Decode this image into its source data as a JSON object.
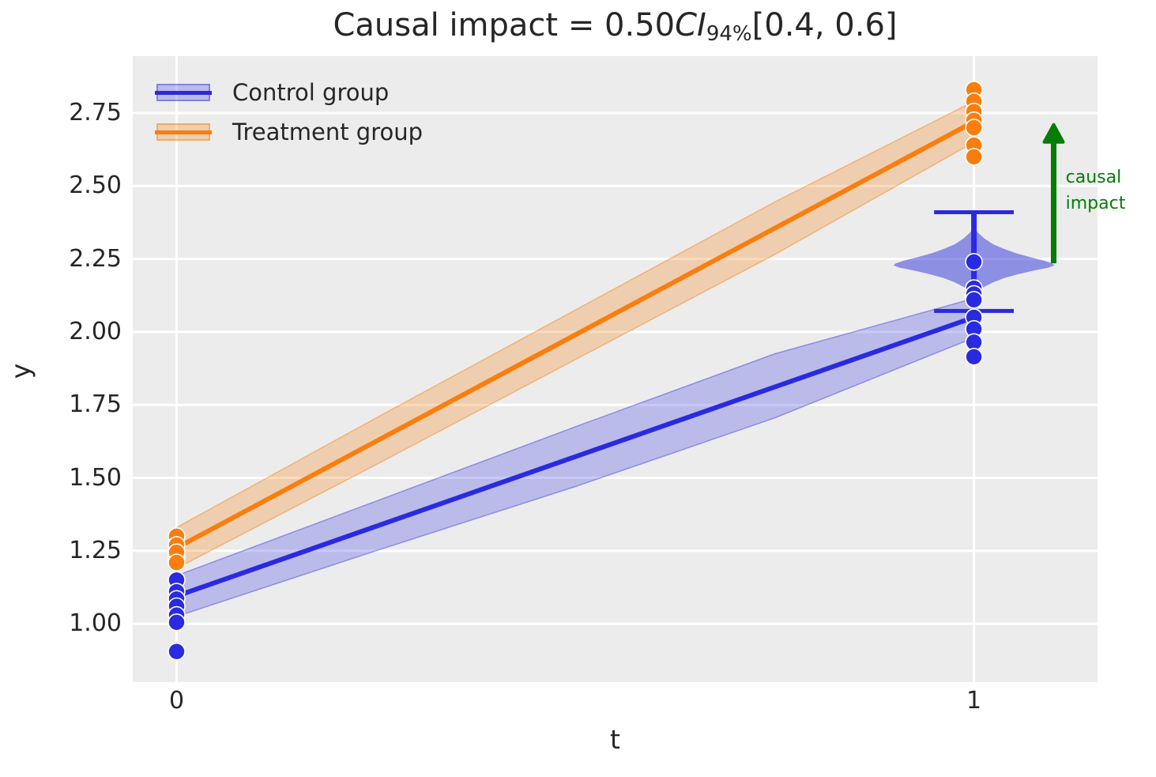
{
  "figure": {
    "bg": "#ffffff",
    "plot_bg": "#ececec",
    "grid_color": "#ffffff",
    "text_color": "#262626"
  },
  "title": {
    "prefix": "Causal impact = 0.50",
    "ci": "CI",
    "ci_sub": "94%",
    "interval": "[0.4, 0.6]"
  },
  "axes": {
    "xlabel": "t",
    "ylabel": "y"
  },
  "legend": {
    "entries": [
      {
        "label": "Control group"
      },
      {
        "label": "Treatment group"
      }
    ]
  },
  "chart_data": {
    "type": "line",
    "title_plain": "Causal impact = 0.50 CI 94% [0.4, 0.6]",
    "xlabel": "t",
    "ylabel": "y",
    "xlim": [
      -0.055,
      1.155
    ],
    "ylim": [
      0.8,
      2.945
    ],
    "grid": true,
    "legend_position": "upper left",
    "xticks": [
      {
        "value": 0,
        "label": "0"
      },
      {
        "value": 1,
        "label": "1"
      }
    ],
    "yticks": [
      {
        "value": 1.0,
        "label": "1.00"
      },
      {
        "value": 1.25,
        "label": "1.25"
      },
      {
        "value": 1.5,
        "label": "1.50"
      },
      {
        "value": 1.75,
        "label": "1.75"
      },
      {
        "value": 2.0,
        "label": "2.00"
      },
      {
        "value": 2.25,
        "label": "2.25"
      },
      {
        "value": 2.5,
        "label": "2.50"
      },
      {
        "value": 2.75,
        "label": "2.75"
      }
    ],
    "series": [
      {
        "name": "Control group",
        "color": "#2a2ae0",
        "band_color": "rgba(60,60,225,0.28)",
        "band_edge_color": "rgba(60,60,225,0.45)",
        "line": {
          "x": [
            0,
            1
          ],
          "y": [
            1.095,
            2.05
          ]
        },
        "band": [
          [
            0,
            1.025,
            1.165
          ],
          [
            0.25,
            1.25,
            1.42
          ],
          [
            0.5,
            1.47,
            1.675
          ],
          [
            0.75,
            1.705,
            1.925
          ],
          [
            1,
            1.98,
            2.115
          ]
        ],
        "scatter": {
          "t0": [
            1.225,
            1.15,
            1.11,
            1.085,
            1.06,
            1.03,
            1.005,
            0.905
          ],
          "t1": [
            2.24,
            2.15,
            2.13,
            2.11,
            2.05,
            2.01,
            1.965,
            1.915
          ]
        }
      },
      {
        "name": "Treatment group",
        "color": "#f97e0e",
        "band_color": "rgba(249,126,14,0.27)",
        "band_edge_color": "rgba(249,126,14,0.45)",
        "line": {
          "x": [
            0,
            1
          ],
          "y": [
            1.26,
            2.72
          ]
        },
        "band": [
          [
            0,
            1.19,
            1.33
          ],
          [
            0.25,
            1.545,
            1.705
          ],
          [
            0.5,
            1.905,
            2.075
          ],
          [
            0.75,
            2.265,
            2.445
          ],
          [
            1,
            2.65,
            2.79
          ]
        ],
        "scatter": {
          "t0": [
            1.3,
            1.27,
            1.245,
            1.21
          ],
          "t1": [
            2.83,
            2.79,
            2.755,
            2.725,
            2.7,
            2.64,
            2.6
          ]
        }
      }
    ],
    "violin": {
      "x": 1.0,
      "color": "rgba(62,68,218,0.55)",
      "max_halfwidth": 0.101,
      "mode": 2.23,
      "profile": [
        [
          2.357,
          0.0
        ],
        [
          2.34,
          0.05
        ],
        [
          2.32,
          0.13
        ],
        [
          2.3,
          0.24
        ],
        [
          2.285,
          0.37
        ],
        [
          2.27,
          0.52
        ],
        [
          2.256,
          0.7
        ],
        [
          2.245,
          0.86
        ],
        [
          2.235,
          0.97
        ],
        [
          2.228,
          1.0
        ],
        [
          2.22,
          0.92
        ],
        [
          2.21,
          0.74
        ],
        [
          2.198,
          0.55
        ],
        [
          2.185,
          0.38
        ],
        [
          2.17,
          0.24
        ],
        [
          2.155,
          0.13
        ],
        [
          2.14,
          0.05
        ],
        [
          2.128,
          0.0
        ]
      ]
    },
    "whisker": {
      "x": 1.0,
      "lo": 2.072,
      "hi": 2.41,
      "cap_halfwidth": 0.05,
      "color": "#2a2ae0"
    },
    "arrow": {
      "x": 1.1,
      "y_from": 2.235,
      "y_to": 2.71,
      "color": "#067d06",
      "label_lines": [
        "causal",
        "impact"
      ],
      "label_x": 1.115,
      "label_y": 2.575
    }
  }
}
